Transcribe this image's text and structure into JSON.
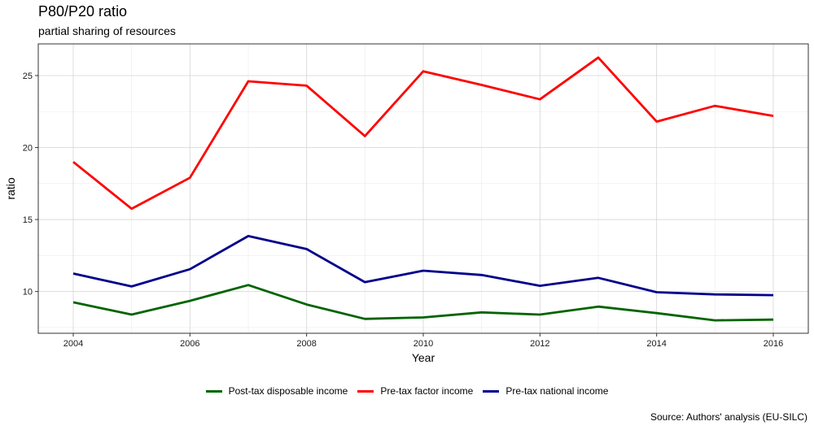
{
  "chart_data": {
    "type": "line",
    "title": "P80/P20 ratio",
    "subtitle": "partial sharing of resources",
    "xlabel": "Year",
    "ylabel": "ratio",
    "caption": "Source: Authors' analysis (EU-SILC)",
    "xlim": [
      2003.4,
      2016.6
    ],
    "ylim": [
      7.1,
      27.2
    ],
    "xticks": [
      2004,
      2006,
      2008,
      2010,
      2012,
      2014,
      2016
    ],
    "yticks": [
      10,
      15,
      20,
      25
    ],
    "grid": true,
    "legend_position": "bottom",
    "x": [
      2004,
      2005,
      2006,
      2007,
      2008,
      2009,
      2010,
      2011,
      2012,
      2013,
      2014,
      2015,
      2016
    ],
    "series": [
      {
        "name": "Post-tax disposable income",
        "color": "#006400",
        "values": [
          9.25,
          8.4,
          9.35,
          10.45,
          9.1,
          8.1,
          8.2,
          8.55,
          8.4,
          8.95,
          8.5,
          8.0,
          8.05
        ]
      },
      {
        "name": "Pre-tax factor income",
        "color": "#ff0000",
        "values": [
          19.0,
          15.75,
          17.9,
          24.6,
          24.3,
          20.8,
          25.3,
          24.35,
          23.35,
          26.25,
          21.8,
          22.9,
          22.2
        ]
      },
      {
        "name": "Pre-tax national income",
        "color": "#00008b",
        "values": [
          11.25,
          10.35,
          11.55,
          13.85,
          12.95,
          10.65,
          11.45,
          11.15,
          10.4,
          10.95,
          9.95,
          9.8,
          9.75
        ]
      }
    ]
  }
}
